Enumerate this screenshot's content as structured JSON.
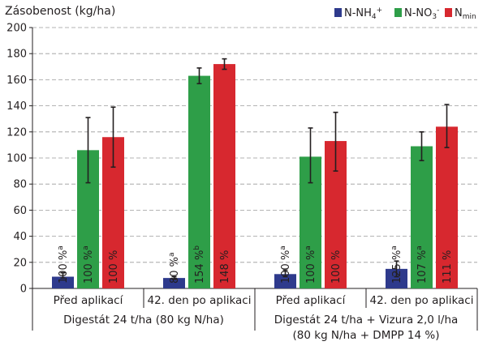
{
  "chart_data": {
    "type": "bar",
    "ylabel": "Zásobenost (kg/ha)",
    "ylim": [
      0,
      200
    ],
    "yticks": [
      0,
      20,
      40,
      60,
      80,
      100,
      120,
      140,
      160,
      180,
      200
    ],
    "grid": true,
    "legend_position": "top-right",
    "categories": [
      "Před aplikací",
      "42. den po aplikaci",
      "Před aplikací",
      "42. den po aplikaci"
    ],
    "groups": [
      {
        "label": "Digestát 24 t/ha (80 kg N/ha)",
        "categories": [
          0,
          1
        ]
      },
      {
        "label": "Digestát 24 t/ha + Vizura 2,0 l/ha",
        "label_line2": "(80 kg N/ha + DMPP 14 %)",
        "categories": [
          2,
          3
        ]
      }
    ],
    "series": [
      {
        "name": "N-NH4+",
        "legend_main": "N-NH",
        "legend_sub": "4",
        "legend_sup": "+",
        "color": "#2e3a8c",
        "values": [
          9,
          8,
          11,
          15
        ],
        "error_low": [
          8,
          7,
          9,
          9
        ],
        "error_high": [
          12,
          9,
          14,
          21
        ],
        "labels": [
          "100 %",
          "80 %",
          "100 %",
          "125 %"
        ],
        "label_sup": [
          "a",
          "a",
          "a",
          "a"
        ]
      },
      {
        "name": "N-NO3-",
        "legend_main": "N-NO",
        "legend_sub": "3",
        "legend_sup": "-",
        "color": "#2e9e48",
        "values": [
          106,
          163,
          101,
          109
        ],
        "error_low": [
          81,
          157,
          81,
          98
        ],
        "error_high": [
          131,
          169,
          123,
          120
        ],
        "labels": [
          "100 %",
          "154 %",
          "100 %",
          "107 %"
        ],
        "label_sup": [
          "a",
          "b",
          "a",
          "a"
        ]
      },
      {
        "name": "Nmin",
        "legend_main": "N",
        "legend_sub": "min",
        "legend_sup": "",
        "color": "#d7282f",
        "values": [
          116,
          172,
          113,
          124
        ],
        "error_low": [
          93,
          168,
          90,
          108
        ],
        "error_high": [
          139,
          176,
          135,
          141
        ],
        "labels": [
          "100 %",
          "148 %",
          "100 %",
          "111 %"
        ],
        "label_sup": [
          "",
          "",
          "",
          ""
        ]
      }
    ]
  }
}
